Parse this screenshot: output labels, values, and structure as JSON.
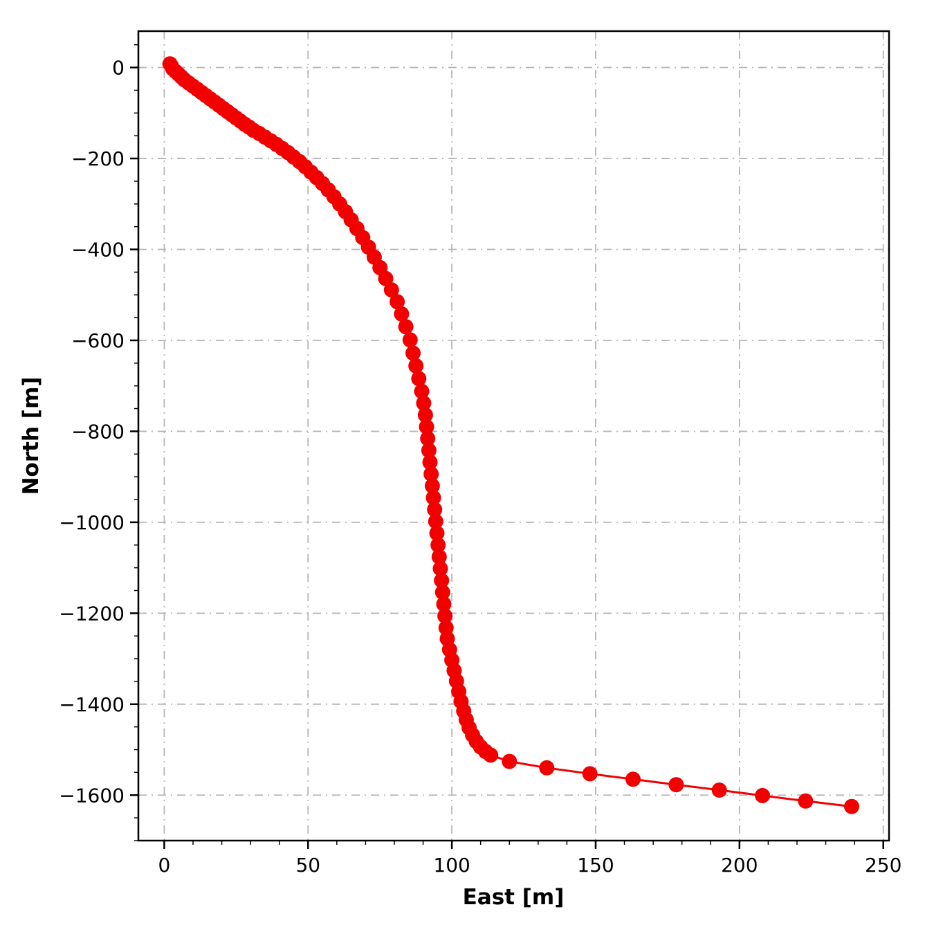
{
  "chart_data": {
    "type": "scatter",
    "title": "",
    "xlabel": "East [m]",
    "ylabel": "North [m]",
    "xlim": [
      -9,
      252
    ],
    "ylim": [
      -1700,
      80
    ],
    "grid": true,
    "grid_style": "dash-dot",
    "grid_color": "#b5b5b5",
    "line_color": "#f20000",
    "marker_color": "#f20000",
    "marker_radius": 11,
    "line_width": 3,
    "xticks": {
      "values": [
        0,
        50,
        100,
        150,
        200,
        250
      ],
      "labels": [
        "0",
        "50",
        "100",
        "150",
        "200",
        "250"
      ]
    },
    "yticks": {
      "values": [
        0,
        -200,
        -400,
        -600,
        -800,
        -1000,
        -1200,
        -1400,
        -1600
      ],
      "labels": [
        "0",
        "−200",
        "−400",
        "−600",
        "−800",
        "−1000",
        "−1200",
        "−1400",
        "−1600"
      ]
    },
    "minor_x_step": 10,
    "minor_y_step": 50,
    "points": [
      [
        2,
        8
      ],
      [
        2.5,
        3
      ],
      [
        3,
        -3
      ],
      [
        4,
        -9
      ],
      [
        5,
        -15
      ],
      [
        6,
        -21
      ],
      [
        7,
        -27
      ],
      [
        8.5,
        -34
      ],
      [
        10,
        -41
      ],
      [
        11.5,
        -48
      ],
      [
        13,
        -55
      ],
      [
        14.5,
        -62
      ],
      [
        16,
        -69
      ],
      [
        17.5,
        -76
      ],
      [
        19,
        -83
      ],
      [
        20.5,
        -90
      ],
      [
        22,
        -97
      ],
      [
        23.5,
        -104
      ],
      [
        25,
        -111
      ],
      [
        26.5,
        -118
      ],
      [
        28,
        -125
      ],
      [
        29.5,
        -131
      ],
      [
        31,
        -138
      ],
      [
        33,
        -145
      ],
      [
        35,
        -153
      ],
      [
        37,
        -161
      ],
      [
        39,
        -169
      ],
      [
        41,
        -178
      ],
      [
        43,
        -187
      ],
      [
        45,
        -197
      ],
      [
        47,
        -207
      ],
      [
        49,
        -218
      ],
      [
        51,
        -230
      ],
      [
        53,
        -242
      ],
      [
        55,
        -255
      ],
      [
        57,
        -269
      ],
      [
        59,
        -284
      ],
      [
        61,
        -300
      ],
      [
        63,
        -317
      ],
      [
        65,
        -335
      ],
      [
        67,
        -354
      ],
      [
        69,
        -374
      ],
      [
        71,
        -395
      ],
      [
        73,
        -417
      ],
      [
        75,
        -440
      ],
      [
        77,
        -464
      ],
      [
        79,
        -489
      ],
      [
        81,
        -515
      ],
      [
        82.5,
        -542
      ],
      [
        84,
        -570
      ],
      [
        85.5,
        -599
      ],
      [
        86.5,
        -628
      ],
      [
        87.5,
        -656
      ],
      [
        88.5,
        -684
      ],
      [
        89.5,
        -712
      ],
      [
        90.2,
        -738
      ],
      [
        90.8,
        -764
      ],
      [
        91.2,
        -790
      ],
      [
        91.6,
        -816
      ],
      [
        92,
        -842
      ],
      [
        92.4,
        -868
      ],
      [
        92.8,
        -894
      ],
      [
        93.2,
        -920
      ],
      [
        93.6,
        -946
      ],
      [
        94,
        -972
      ],
      [
        94.4,
        -998
      ],
      [
        94.8,
        -1024
      ],
      [
        95.2,
        -1050
      ],
      [
        95.6,
        -1076
      ],
      [
        96,
        -1102
      ],
      [
        96.4,
        -1128
      ],
      [
        96.8,
        -1154
      ],
      [
        97.2,
        -1180
      ],
      [
        97.6,
        -1206
      ],
      [
        98,
        -1232
      ],
      [
        98.4,
        -1256
      ],
      [
        99.2,
        -1280
      ],
      [
        100,
        -1303
      ],
      [
        100.8,
        -1326
      ],
      [
        101.6,
        -1349
      ],
      [
        102.4,
        -1372
      ],
      [
        103.2,
        -1394
      ],
      [
        104.1,
        -1415
      ],
      [
        105,
        -1434
      ],
      [
        106,
        -1452
      ],
      [
        107.2,
        -1468
      ],
      [
        108.5,
        -1482
      ],
      [
        110,
        -1494
      ],
      [
        111.7,
        -1504
      ],
      [
        113.5,
        -1512
      ],
      [
        120,
        -1526
      ],
      [
        133,
        -1540
      ],
      [
        148,
        -1553
      ],
      [
        163,
        -1565
      ],
      [
        178,
        -1577
      ],
      [
        193,
        -1589
      ],
      [
        208,
        -1601
      ],
      [
        223,
        -1613
      ],
      [
        239,
        -1625
      ]
    ]
  }
}
